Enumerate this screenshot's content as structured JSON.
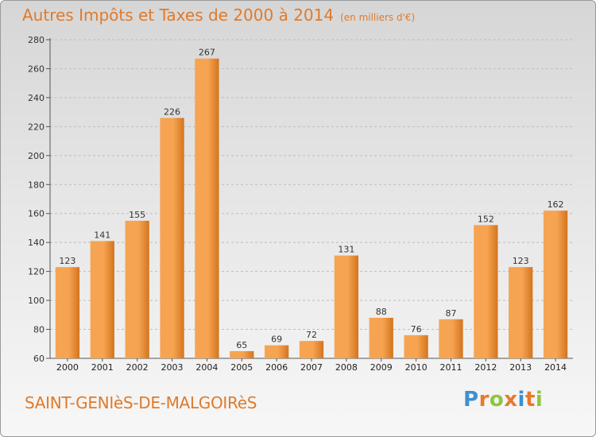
{
  "header": {
    "title": "Autres Impôts et Taxes de 2000 à 2014",
    "unit": "(en milliers d'€)"
  },
  "footer": {
    "commune": "SAINT-GENIèS-DE-MALGOIRèS",
    "logo": "Proxiti"
  },
  "colors": {
    "accent": "#e07a2a",
    "bar_light": "#f6a452",
    "bar_dark": "#d4741e",
    "logo_letters": [
      "#3d8fd1",
      "#e8792c",
      "#8cc63f",
      "#e8792c",
      "#3d8fd1",
      "#e8792c",
      "#8cc63f"
    ]
  },
  "chart_data": {
    "type": "bar",
    "title": "Autres Impôts et Taxes de 2000 à 2014",
    "subtitle": "(en milliers d'€)",
    "xlabel": "",
    "ylabel": "",
    "categories": [
      "2000",
      "2001",
      "2002",
      "2003",
      "2004",
      "2005",
      "2006",
      "2007",
      "2008",
      "2009",
      "2010",
      "2011",
      "2012",
      "2013",
      "2014"
    ],
    "values": [
      123,
      141,
      155,
      226,
      267,
      65,
      69,
      72,
      131,
      88,
      76,
      87,
      152,
      123,
      162
    ],
    "ylim": [
      60,
      280
    ],
    "yticks": [
      60,
      80,
      100,
      120,
      140,
      160,
      180,
      200,
      220,
      240,
      260,
      280
    ],
    "grid": true,
    "data_labels": true
  }
}
